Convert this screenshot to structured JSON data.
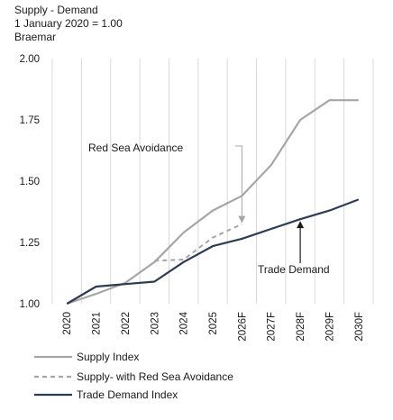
{
  "header": {
    "line1": "Supply - Demand",
    "line2": "1 January 2020 = 1.00",
    "line3": "Braemar"
  },
  "chart_data": {
    "type": "line",
    "title": "Supply - Demand",
    "subtitle": "1 January 2020 = 1.00",
    "source": "Braemar",
    "x": [
      "2020",
      "2021",
      "2022",
      "2023",
      "2024",
      "2025",
      "2026F",
      "2027F",
      "2028F",
      "2029F",
      "2030F"
    ],
    "ylim": [
      1.0,
      2.0
    ],
    "yticks": [
      "1.00",
      "1.25",
      "1.50",
      "1.75",
      "2.00"
    ],
    "grid": "vertical",
    "legend": "bottom",
    "series": [
      {
        "name": "Supply Index",
        "style": "solid",
        "color": "#a6a6a6",
        "values": [
          1.0,
          1.04,
          1.085,
          1.17,
          1.29,
          1.38,
          1.44,
          1.565,
          1.75,
          1.83,
          1.83
        ]
      },
      {
        "name": "Supply- with Red Sea Avoidance",
        "style": "dashed",
        "color": "#a6a6a6",
        "values": [
          null,
          null,
          null,
          1.175,
          1.18,
          1.27,
          1.325,
          null,
          null,
          null,
          null
        ]
      },
      {
        "name": "Trade Demand Index",
        "style": "solid",
        "color": "#2e3b52",
        "values": [
          1.0,
          1.07,
          1.08,
          1.09,
          1.17,
          1.235,
          1.265,
          1.305,
          1.345,
          1.38,
          1.425
        ]
      }
    ],
    "annotations": [
      {
        "text": "Red Sea Avoidance",
        "x": "2026F",
        "y": 1.325
      },
      {
        "text": "Trade Demand",
        "x": "2028F",
        "y": 1.345
      }
    ]
  }
}
